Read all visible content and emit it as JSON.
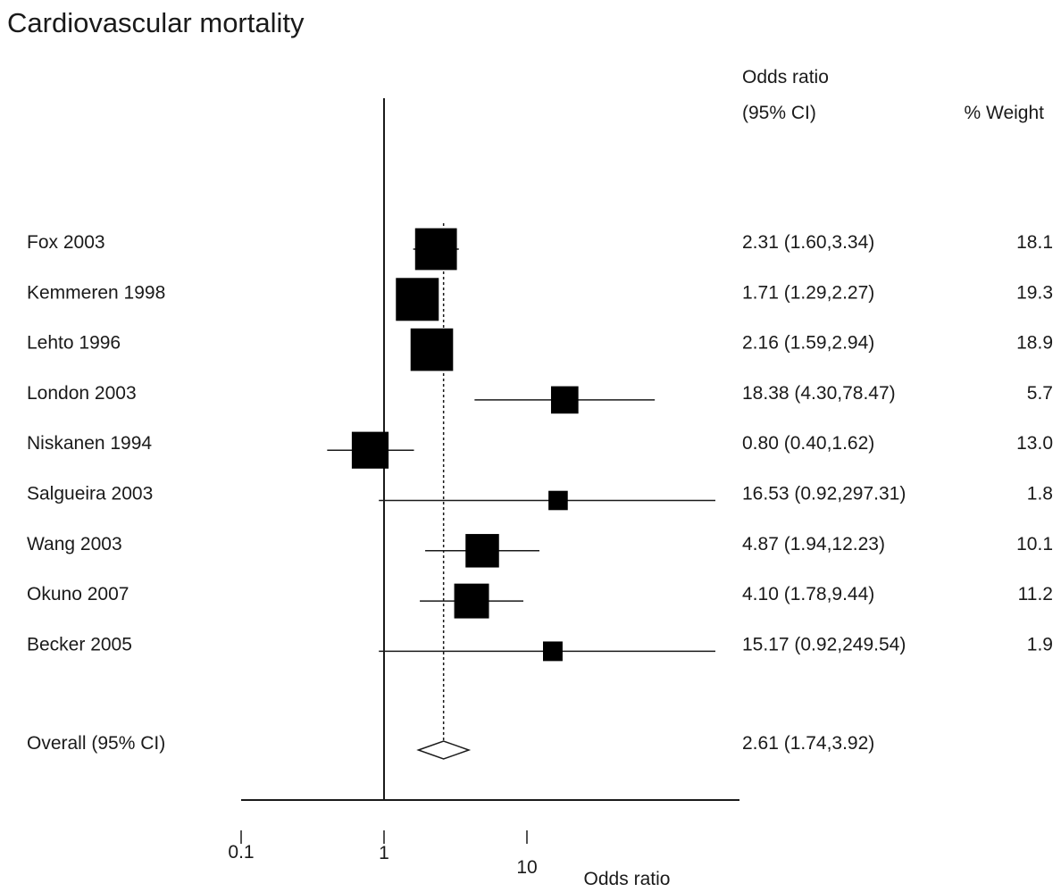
{
  "title": "Cardiovascular mortality",
  "header": {
    "or_line1": "Odds ratio",
    "or_line2": "(95% CI)",
    "weight": "% Weight"
  },
  "chart_data": {
    "type": "forest",
    "xscale": "log",
    "xlim": [
      0.1,
      300
    ],
    "xticks": [
      0.1,
      1,
      10
    ],
    "xtick_labels": [
      "0.1",
      "1",
      "10"
    ],
    "xlabel": "Odds ratio",
    "null_line": 1,
    "studies": [
      {
        "label": "Fox 2003",
        "or": 2.31,
        "lo": 1.6,
        "hi": 3.34,
        "ci_text": "2.31 (1.60,3.34)",
        "weight": "18.1"
      },
      {
        "label": "Kemmeren 1998",
        "or": 1.71,
        "lo": 1.29,
        "hi": 2.27,
        "ci_text": "1.71 (1.29,2.27)",
        "weight": "19.3"
      },
      {
        "label": "Lehto 1996",
        "or": 2.16,
        "lo": 1.59,
        "hi": 2.94,
        "ci_text": "2.16 (1.59,2.94)",
        "weight": "18.9"
      },
      {
        "label": "London 2003",
        "or": 18.38,
        "lo": 4.3,
        "hi": 78.47,
        "ci_text": "18.38 (4.30,78.47)",
        "weight": "5.7"
      },
      {
        "label": "Niskanen 1994",
        "or": 0.8,
        "lo": 0.4,
        "hi": 1.62,
        "ci_text": "0.80 (0.40,1.62)",
        "weight": "13.0"
      },
      {
        "label": "Salgueira 2003",
        "or": 16.53,
        "lo": 0.92,
        "hi": 297.31,
        "ci_text": "16.53 (0.92,297.31)",
        "weight": "1.8"
      },
      {
        "label": "Wang 2003",
        "or": 4.87,
        "lo": 1.94,
        "hi": 12.23,
        "ci_text": "4.87 (1.94,12.23)",
        "weight": "10.1"
      },
      {
        "label": "Okuno 2007",
        "or": 4.1,
        "lo": 1.78,
        "hi": 9.44,
        "ci_text": "4.10 (1.78,9.44)",
        "weight": "11.2"
      },
      {
        "label": "Becker 2005",
        "or": 15.17,
        "lo": 0.92,
        "hi": 249.54,
        "ci_text": "15.17 (0.92,249.54)",
        "weight": "1.9"
      }
    ],
    "overall": {
      "label": "Overall (95% CI)",
      "or": 2.61,
      "lo": 1.74,
      "hi": 3.92,
      "ci_text": "2.61 (1.74,3.92)"
    },
    "colors": {
      "marker": "#000000",
      "line": "#1a1a1a",
      "diamond_fill": "#ffffff"
    }
  }
}
